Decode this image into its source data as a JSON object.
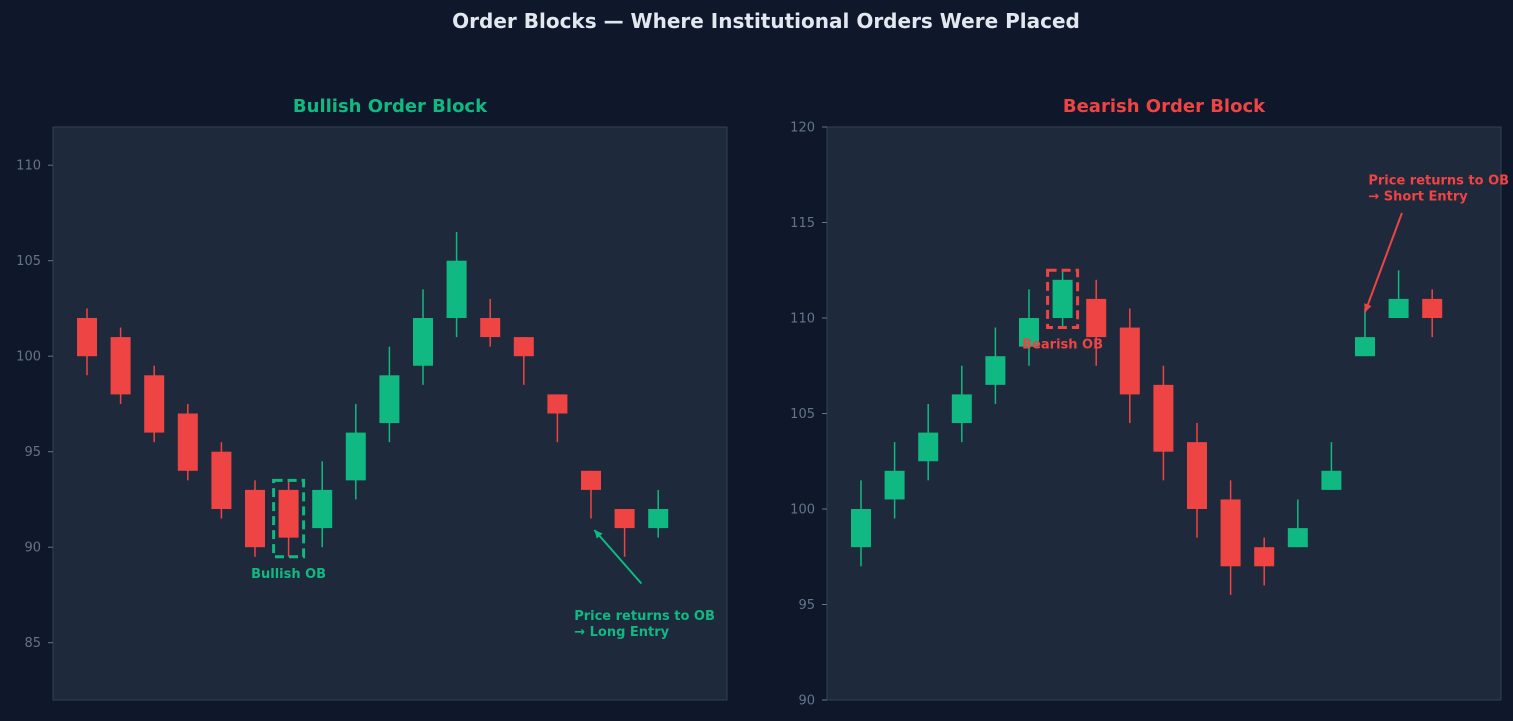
{
  "figure": {
    "title": "Order Blocks — Where Institutional Orders Were Placed"
  },
  "colors": {
    "bull": "#10b981",
    "bear": "#ef4444",
    "background": "#0f172a",
    "axes_bg": "#1e293b",
    "spine": "#334155",
    "tick": "#64748b"
  },
  "chart_data": [
    {
      "type": "candlestick",
      "title": "Bullish Order Block",
      "title_color": "#10b981",
      "xlabel": "",
      "ylabel": "",
      "ylim": [
        82,
        112
      ],
      "yticks": [
        85,
        90,
        95,
        100,
        105,
        110
      ],
      "x": [
        0,
        1,
        2,
        3,
        4,
        5,
        6,
        7,
        8,
        9,
        10,
        11,
        12,
        13,
        14,
        15,
        16,
        17
      ],
      "open": [
        102,
        101,
        99,
        97,
        95,
        93,
        93,
        91,
        93.5,
        96.5,
        99.5,
        102,
        102,
        101,
        98,
        94,
        92,
        91
      ],
      "high": [
        102.5,
        101.5,
        99.5,
        97.5,
        95.5,
        93.5,
        93.5,
        94.5,
        97.5,
        100.5,
        103.5,
        106.5,
        103,
        101,
        98,
        94,
        92,
        93
      ],
      "low": [
        99,
        97.5,
        95.5,
        93.5,
        91.5,
        89.5,
        89.5,
        90,
        92.5,
        95.5,
        98.5,
        101,
        100.5,
        98.5,
        95.5,
        91.5,
        89.5,
        90.5
      ],
      "close": [
        100,
        98,
        96,
        94,
        92,
        90,
        90.5,
        93,
        96,
        99,
        102,
        105,
        101,
        100,
        97,
        93,
        91,
        92
      ],
      "highlight": {
        "x": 6,
        "y_range": [
          89.5,
          93.5
        ],
        "label": "Bullish OB",
        "label_at": [
          6,
          88.6
        ]
      },
      "annotation": {
        "text_lines": [
          "Price returns to OB",
          "→ Long Entry"
        ],
        "text_at": [
          14.5,
          86.2
        ],
        "arrow_from": [
          16.5,
          88.1
        ],
        "arrow_to": [
          15.1,
          90.9
        ]
      }
    },
    {
      "type": "candlestick",
      "title": "Bearish Order Block",
      "title_color": "#ef4444",
      "xlabel": "",
      "ylabel": "",
      "ylim": [
        90,
        120
      ],
      "yticks": [
        90,
        95,
        100,
        105,
        110,
        115,
        120
      ],
      "x": [
        0,
        1,
        2,
        3,
        4,
        5,
        6,
        7,
        8,
        9,
        10,
        11,
        12,
        13,
        14,
        15,
        16,
        17
      ],
      "open": [
        98,
        100.5,
        102.5,
        104.5,
        106.5,
        108.5,
        110,
        111,
        109.5,
        106.5,
        103.5,
        100.5,
        98,
        98,
        101,
        108,
        110,
        111
      ],
      "high": [
        101.5,
        103.5,
        105.5,
        107.5,
        109.5,
        111.5,
        112.5,
        112,
        110.5,
        107.5,
        104.5,
        101.5,
        98.5,
        100.5,
        103.5,
        110.5,
        112.5,
        111.5
      ],
      "low": [
        97,
        99.5,
        101.5,
        103.5,
        105.5,
        107.5,
        109.5,
        107.5,
        104.5,
        101.5,
        98.5,
        95.5,
        96,
        98,
        101,
        108,
        110,
        109
      ],
      "close": [
        100,
        102,
        104,
        106,
        108,
        110,
        112,
        109,
        106,
        103,
        100,
        97,
        97,
        99,
        102,
        109,
        111,
        110
      ],
      "highlight": {
        "x": 6,
        "y_range": [
          109.5,
          112.5
        ],
        "label": "Bearish OB",
        "label_at": [
          6,
          108.6
        ]
      },
      "annotation": {
        "text_lines": [
          "Price returns to OB",
          "→ Short Entry"
        ],
        "text_at": [
          15.1,
          117.0
        ],
        "arrow_from": [
          16.1,
          115.5
        ],
        "arrow_to": [
          15.0,
          110.3
        ]
      }
    }
  ]
}
